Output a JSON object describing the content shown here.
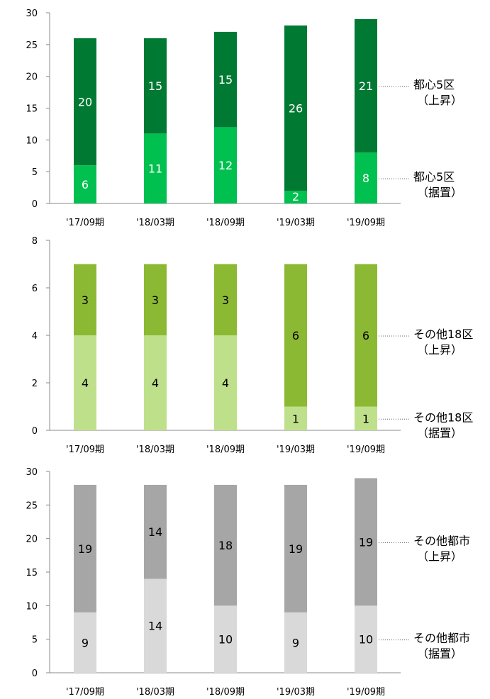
{
  "chart_data": [
    {
      "type": "bar",
      "stacked": true,
      "categories": [
        "'17/09期",
        "'18/03期",
        "'18/09期",
        "'19/03期",
        "'19/09期"
      ],
      "ylim": [
        0,
        30
      ],
      "yticks": [
        0,
        5,
        10,
        15,
        20,
        25,
        30
      ],
      "series": [
        {
          "name": "都心5区（据置）",
          "values": [
            6,
            11,
            12,
            2,
            8
          ],
          "color": "#00c050",
          "label_color": "#ffffff",
          "legend_lines": [
            "都心5区",
            "（据置）"
          ]
        },
        {
          "name": "都心5区（上昇）",
          "values": [
            20,
            15,
            15,
            26,
            21
          ],
          "color": "#007a33",
          "label_color": "#ffffff",
          "legend_lines": [
            "都心5区",
            "（上昇）"
          ]
        }
      ]
    },
    {
      "type": "bar",
      "stacked": true,
      "categories": [
        "'17/09期",
        "'18/03期",
        "'18/09期",
        "'19/03期",
        "'19/09期"
      ],
      "ylim": [
        0,
        8
      ],
      "yticks": [
        0,
        2,
        4,
        6,
        8
      ],
      "series": [
        {
          "name": "その他18区（据置）",
          "values": [
            4,
            4,
            4,
            1,
            1
          ],
          "color": "#bfe08a",
          "label_color": "#000000",
          "legend_lines": [
            "その他18区",
            "（据置）"
          ]
        },
        {
          "name": "その他18区（上昇）",
          "values": [
            3,
            3,
            3,
            6,
            6
          ],
          "color": "#8cb933",
          "label_color": "#000000",
          "legend_lines": [
            "その他18区",
            "（上昇）"
          ]
        }
      ]
    },
    {
      "type": "bar",
      "stacked": true,
      "categories": [
        "'17/09期",
        "'18/03期",
        "'18/09期",
        "'19/03期",
        "'19/09期"
      ],
      "ylim": [
        0,
        30
      ],
      "yticks": [
        0,
        5,
        10,
        15,
        20,
        25,
        30
      ],
      "series": [
        {
          "name": "その他都市（据置）",
          "values": [
            9,
            14,
            10,
            9,
            10
          ],
          "color": "#d9d9d9",
          "label_color": "#000000",
          "legend_lines": [
            "その他都市",
            "（据置）"
          ]
        },
        {
          "name": "その他都市（上昇）",
          "values": [
            19,
            14,
            18,
            19,
            19
          ],
          "color": "#a6a6a6",
          "label_color": "#000000",
          "legend_lines": [
            "その他都市",
            "（上昇）"
          ]
        }
      ]
    }
  ]
}
